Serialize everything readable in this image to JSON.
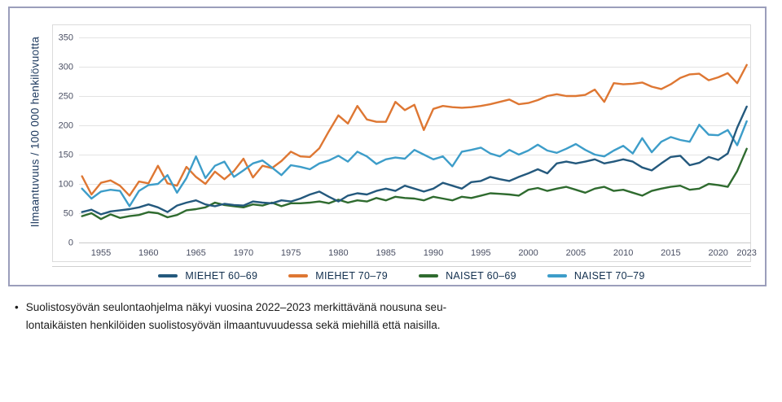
{
  "ui_colors": {
    "panel_border": "#9B9EBB",
    "grid": "#E3E3E3",
    "axis_line": "#C9C9C9",
    "plot_border": "#DBDBDB",
    "tick_text": "#4A4F63",
    "axis_title_text": "#1E3A5F",
    "legend_text": "#13304F",
    "note_text": "#1C1C1C"
  },
  "note": {
    "bullet": "•",
    "lines": [
      "Suolistosyövän seulontaohjelma näkyi vuosina 2022–2023 merkittävänä nousuna seu-",
      "lontaikäisten henkilöiden suolistosyövän ilmaantuvuudessa sekä miehillä että naisilla."
    ]
  },
  "chart_data": {
    "type": "line",
    "title": "",
    "ylabel": "Ilmaantuvuus / 100 000 henkilövuotta",
    "xlabel": "",
    "ylim": [
      0,
      350
    ],
    "grid": true,
    "legend_position": "bottom",
    "y_ticks": [
      350,
      300,
      250,
      200,
      150,
      100,
      50,
      0
    ],
    "x_tick_labels": [
      1955,
      1960,
      1965,
      1970,
      1975,
      1980,
      1985,
      1990,
      1995,
      2000,
      2005,
      2010,
      2015,
      2020,
      2023
    ],
    "x": [
      1953,
      1954,
      1955,
      1956,
      1957,
      1958,
      1959,
      1960,
      1961,
      1962,
      1963,
      1964,
      1965,
      1966,
      1967,
      1968,
      1969,
      1970,
      1971,
      1972,
      1973,
      1974,
      1975,
      1976,
      1977,
      1978,
      1979,
      1980,
      1981,
      1982,
      1983,
      1984,
      1985,
      1986,
      1987,
      1988,
      1989,
      1990,
      1991,
      1992,
      1993,
      1994,
      1995,
      1996,
      1997,
      1998,
      1999,
      2000,
      2001,
      2002,
      2003,
      2004,
      2005,
      2006,
      2007,
      2008,
      2009,
      2010,
      2011,
      2012,
      2013,
      2014,
      2015,
      2016,
      2017,
      2018,
      2019,
      2020,
      2021,
      2022,
      2023
    ],
    "series": [
      {
        "name": "MIEHET 60–69",
        "color": "#24597D",
        "values": [
          52,
          56,
          48,
          53,
          55,
          57,
          60,
          65,
          60,
          52,
          63,
          68,
          72,
          65,
          62,
          66,
          64,
          63,
          70,
          68,
          67,
          72,
          70,
          75,
          82,
          87,
          78,
          70,
          80,
          84,
          82,
          88,
          92,
          88,
          97,
          92,
          87,
          92,
          102,
          97,
          92,
          103,
          105,
          112,
          108,
          105,
          112,
          118,
          125,
          118,
          135,
          138,
          135,
          138,
          142,
          135,
          138,
          142,
          138,
          128,
          123,
          135,
          146,
          148,
          132,
          136,
          146,
          141,
          152,
          196,
          232
        ]
      },
      {
        "name": "MIEHET 70–79",
        "color": "#DE7733",
        "values": [
          113,
          82,
          102,
          106,
          97,
          80,
          104,
          101,
          131,
          101,
          97,
          129,
          112,
          100,
          121,
          108,
          122,
          143,
          111,
          131,
          127,
          139,
          155,
          147,
          146,
          161,
          190,
          217,
          203,
          233,
          210,
          206,
          206,
          240,
          226,
          235,
          192,
          228,
          233,
          231,
          230,
          231,
          233,
          236,
          240,
          244,
          236,
          238,
          243,
          250,
          253,
          250,
          250,
          252,
          261,
          240,
          272,
          270,
          271,
          273,
          266,
          262,
          270,
          281,
          287,
          288,
          277,
          282,
          289,
          272,
          303
        ]
      },
      {
        "name": "NAISET 60–69",
        "color": "#2F6B2F",
        "values": [
          45,
          50,
          40,
          48,
          42,
          45,
          47,
          52,
          50,
          43,
          47,
          55,
          57,
          60,
          68,
          64,
          62,
          60,
          65,
          63,
          68,
          62,
          67,
          67,
          68,
          70,
          67,
          73,
          68,
          72,
          70,
          76,
          72,
          78,
          76,
          75,
          72,
          78,
          75,
          72,
          78,
          76,
          80,
          84,
          83,
          82,
          80,
          90,
          93,
          88,
          92,
          95,
          90,
          85,
          92,
          95,
          88,
          90,
          85,
          80,
          88,
          92,
          95,
          97,
          90,
          92,
          100,
          98,
          95,
          122,
          160
        ]
      },
      {
        "name": "NAISET 70–79",
        "color": "#3D9DC9",
        "values": [
          92,
          75,
          87,
          90,
          88,
          62,
          88,
          98,
          100,
          115,
          85,
          110,
          147,
          110,
          131,
          138,
          112,
          123,
          135,
          140,
          128,
          115,
          132,
          129,
          125,
          135,
          140,
          148,
          138,
          155,
          147,
          134,
          142,
          145,
          143,
          158,
          150,
          142,
          147,
          130,
          155,
          158,
          162,
          152,
          147,
          158,
          150,
          157,
          167,
          157,
          153,
          160,
          168,
          158,
          150,
          147,
          157,
          165,
          152,
          178,
          154,
          172,
          180,
          175,
          172,
          201,
          184,
          183,
          192,
          166,
          207
        ]
      }
    ]
  }
}
